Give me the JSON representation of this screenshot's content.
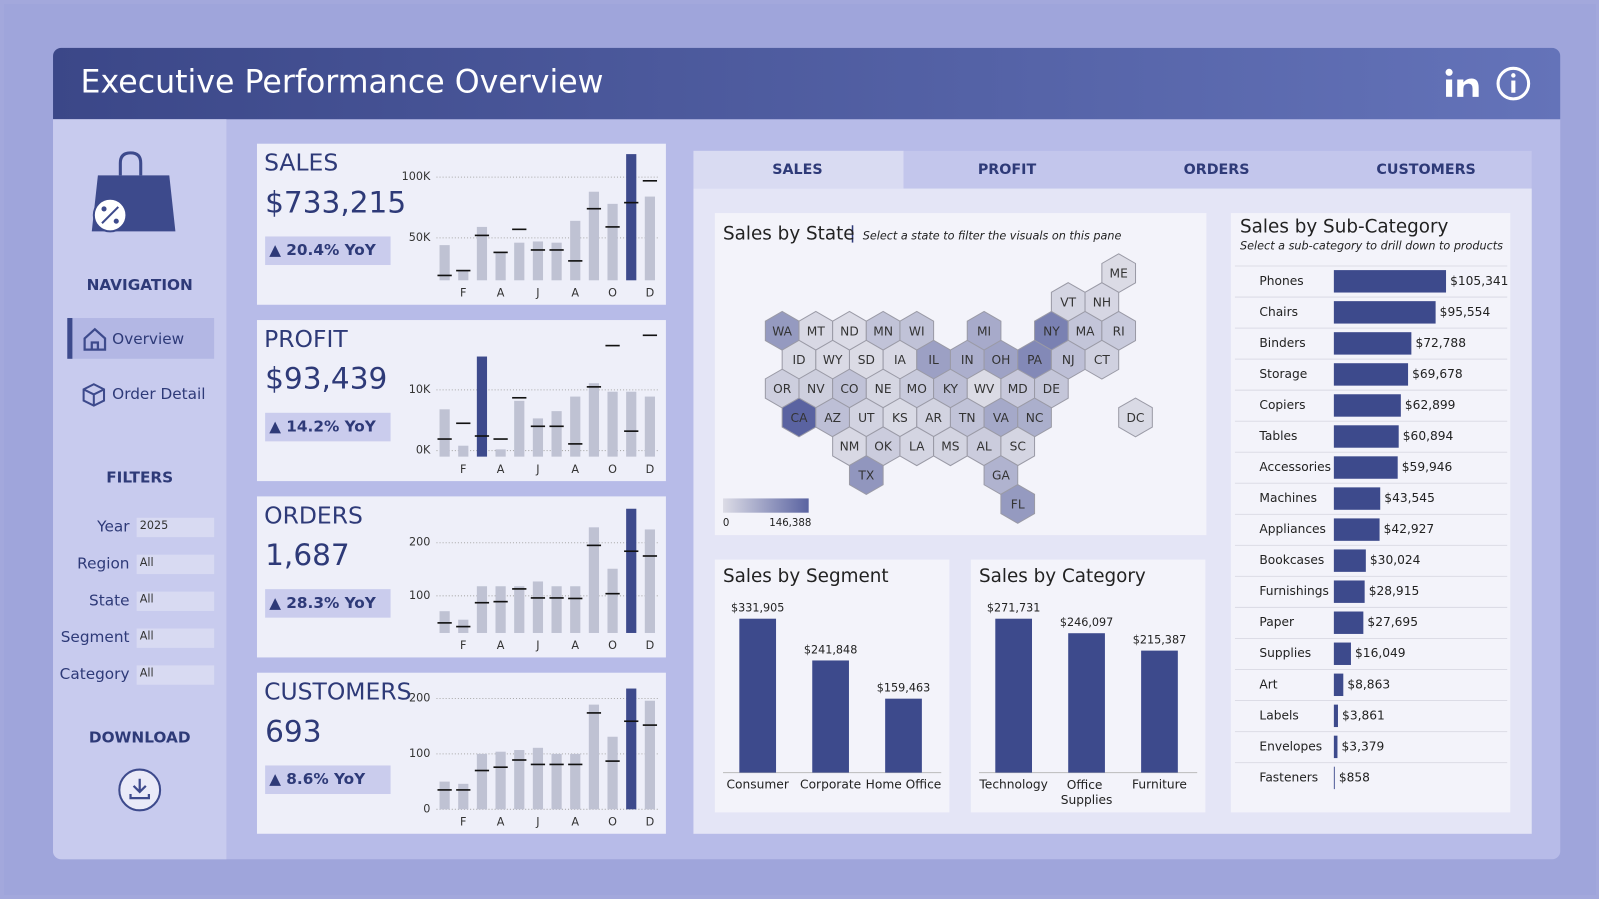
{
  "header": {
    "title": "Executive Performance Overview"
  },
  "navigation": {
    "title": "NAVIGATION",
    "items": [
      "Overview",
      "Order Detail"
    ]
  },
  "filters": {
    "title": "FILTERS",
    "items": [
      {
        "label": "Year",
        "value": "2025"
      },
      {
        "label": "Region",
        "value": "All"
      },
      {
        "label": "State",
        "value": "All"
      },
      {
        "label": "Segment",
        "value": "All"
      },
      {
        "label": "Category",
        "value": "All"
      }
    ]
  },
  "download": {
    "title": "DOWNLOAD"
  },
  "tabs": [
    "SALES",
    "PROFIT",
    "ORDERS",
    "CUSTOMERS"
  ],
  "chart_data": [
    {
      "type": "sparkbar",
      "title": "SALES",
      "kpi": "$733,215",
      "change": "▲ 20.4% YoY",
      "categories": [
        null,
        "F",
        null,
        "A",
        null,
        "J",
        null,
        "A",
        null,
        "O",
        null,
        "D"
      ],
      "values": [
        44000,
        23000,
        59000,
        38000,
        46000,
        47000,
        46000,
        64000,
        88000,
        78000,
        119000,
        84000
      ],
      "previous_values": [
        19000,
        23000,
        52000,
        38000,
        57000,
        40000,
        40000,
        31000,
        74000,
        59000,
        79000,
        97000
      ],
      "ylim": [
        15000,
        120000
      ],
      "yticks": [
        {
          "value": 50000,
          "label": "50K"
        },
        {
          "value": 100000,
          "label": "100K"
        }
      ],
      "highlight_index": 10,
      "color": "#bfc2d3",
      "highlight_color": "#3d4a8c",
      "marker_color": "#111111",
      "grid": true
    },
    {
      "type": "sparkbar",
      "title": "PROFIT",
      "kpi": "$93,439",
      "change": "▲ 14.2% YoY",
      "categories": [
        null,
        "F",
        null,
        "A",
        null,
        "J",
        null,
        "A",
        null,
        "O",
        null,
        "D"
      ],
      "values": [
        6800,
        800,
        15500,
        200,
        8200,
        5300,
        6500,
        8900,
        11100,
        9700,
        9700,
        8900
      ],
      "previous_values": [
        1900,
        4500,
        2400,
        1900,
        8700,
        4000,
        4000,
        1100,
        10500,
        17300,
        3200,
        19000
      ],
      "ylim": [
        -1000,
        20000
      ],
      "yticks": [
        {
          "value": 0,
          "label": "0K"
        },
        {
          "value": 10000,
          "label": "10K"
        }
      ],
      "highlight_index": 2,
      "color": "#bfc2d3",
      "highlight_color": "#3d4a8c",
      "marker_color": "#111111",
      "grid": true
    },
    {
      "type": "sparkbar",
      "title": "ORDERS",
      "kpi": "1,687",
      "change": "▲ 28.3% YoY",
      "categories": [
        null,
        "F",
        null,
        "A",
        null,
        "J",
        null,
        "A",
        null,
        "O",
        null,
        "D"
      ],
      "values": [
        71,
        55,
        118,
        118,
        118,
        127,
        118,
        118,
        229,
        151,
        264,
        225
      ],
      "previous_values": [
        49,
        42,
        87,
        89,
        113,
        96,
        96,
        95,
        195,
        104,
        184,
        175
      ],
      "ylim": [
        30,
        270
      ],
      "yticks": [
        100,
        200
      ],
      "highlight_index": 10,
      "color": "#bfc2d3",
      "highlight_color": "#3d4a8c",
      "marker_color": "#111111",
      "grid": true
    },
    {
      "type": "sparkbar",
      "title": "CUSTOMERS",
      "kpi": "693",
      "change": "▲ 8.6% YoY",
      "categories": [
        null,
        "F",
        null,
        "A",
        null,
        "J",
        null,
        "A",
        null,
        "O",
        null,
        "D"
      ],
      "values": [
        50,
        46,
        100,
        104,
        107,
        111,
        100,
        100,
        189,
        131,
        218,
        196
      ],
      "previous_values": [
        35,
        35,
        70,
        76,
        89,
        81,
        81,
        81,
        174,
        87,
        159,
        152
      ],
      "ylim": [
        0,
        230
      ],
      "yticks": [
        0,
        100,
        200
      ],
      "highlight_index": 10,
      "color": "#bfc2d3",
      "highlight_color": "#3d4a8c",
      "marker_color": "#111111",
      "grid": true
    },
    {
      "type": "hexmap",
      "title": "Sales by State",
      "subtitle": "Select a state to filter the visuals on this pane",
      "states": [
        {
          "label": "ME",
          "value": 1300
        },
        {
          "label": "VT",
          "value": 9000
        },
        {
          "label": "NH",
          "value": 7000
        },
        {
          "label": "WA",
          "value": 80000
        },
        {
          "label": "MT",
          "value": 5000
        },
        {
          "label": "ND",
          "value": 900
        },
        {
          "label": "MN",
          "value": 30000
        },
        {
          "label": "WI",
          "value": 32000
        },
        {
          "label": "MI",
          "value": 60000
        },
        {
          "label": "NY",
          "value": 110000
        },
        {
          "label": "MA",
          "value": 28000
        },
        {
          "label": "RI",
          "value": 22000
        },
        {
          "label": "ID",
          "value": 4000
        },
        {
          "label": "WY",
          "value": 2000
        },
        {
          "label": "SD",
          "value": 1300
        },
        {
          "label": "IA",
          "value": 4500
        },
        {
          "label": "IL",
          "value": 72000
        },
        {
          "label": "IN",
          "value": 54000
        },
        {
          "label": "OH",
          "value": 70000
        },
        {
          "label": "PA",
          "value": 100000
        },
        {
          "label": "NJ",
          "value": 35000
        },
        {
          "label": "CT",
          "value": 13000
        },
        {
          "label": "OR",
          "value": 17000
        },
        {
          "label": "NV",
          "value": 16000
        },
        {
          "label": "CO",
          "value": 32000
        },
        {
          "label": "NE",
          "value": 7500
        },
        {
          "label": "MO",
          "value": 22000
        },
        {
          "label": "KY",
          "value": 36000
        },
        {
          "label": "WV",
          "value": 1200
        },
        {
          "label": "MD",
          "value": 24000
        },
        {
          "label": "DE",
          "value": 27000
        },
        {
          "label": "CA",
          "value": 146388
        },
        {
          "label": "AZ",
          "value": 35000
        },
        {
          "label": "UT",
          "value": 11000
        },
        {
          "label": "KS",
          "value": 2900
        },
        {
          "label": "AR",
          "value": 11000
        },
        {
          "label": "TN",
          "value": 30000
        },
        {
          "label": "VA",
          "value": 62000
        },
        {
          "label": "NC",
          "value": 55000
        },
        {
          "label": "DC",
          "value": 2900
        },
        {
          "label": "NM",
          "value": 4800
        },
        {
          "label": "OK",
          "value": 19000
        },
        {
          "label": "LA",
          "value": 9000
        },
        {
          "label": "MS",
          "value": 10000
        },
        {
          "label": "AL",
          "value": 19000
        },
        {
          "label": "SC",
          "value": 8500
        },
        {
          "label": "TX",
          "value": 85000
        },
        {
          "label": "GA",
          "value": 49000
        },
        {
          "label": "FL",
          "value": 80000
        }
      ],
      "legend": {
        "min": 0,
        "max": {
          "value": 146388,
          "label": "146,388"
        }
      },
      "low_color": "#dcdce6",
      "high_color": "#5a63a1"
    },
    {
      "type": "bar",
      "title": "Sales by Segment",
      "categories": [
        "Consumer",
        "Corporate",
        "Home Office"
      ],
      "values": [
        331905,
        241848,
        159463
      ],
      "value_labels": [
        "$331,905",
        "$241,848",
        "$159,463"
      ],
      "color": "#3d4a8c"
    },
    {
      "type": "bar",
      "title": "Sales by Category",
      "categories": [
        "Technology",
        "Office Supplies",
        "Furniture"
      ],
      "values": [
        271731,
        246097,
        215387
      ],
      "value_labels": [
        "$271,731",
        "$246,097",
        "$215,387"
      ],
      "color": "#3d4a8c"
    },
    {
      "type": "hbar",
      "title": "Sales by Sub-Category",
      "subtitle": "Select a sub-category to drill down to products",
      "categories": [
        "Phones",
        "Chairs",
        "Binders",
        "Storage",
        "Copiers",
        "Tables",
        "Accessories",
        "Machines",
        "Appliances",
        "Bookcases",
        "Furnishings",
        "Paper",
        "Supplies",
        "Art",
        "Labels",
        "Envelopes",
        "Fasteners"
      ],
      "values": [
        105341,
        95554,
        72788,
        69678,
        62899,
        60894,
        59946,
        43545,
        42927,
        30024,
        28915,
        27695,
        16049,
        8863,
        3861,
        3379,
        858
      ],
      "value_labels": [
        "$105,341",
        "$95,554",
        "$72,788",
        "$69,678",
        "$62,899",
        "$60,894",
        "$59,946",
        "$43,545",
        "$42,927",
        "$30,024",
        "$28,915",
        "$27,695",
        "$16,049",
        "$8,863",
        "$3,861",
        "$3,379",
        "$858"
      ],
      "color": "#3d4a8c"
    }
  ]
}
